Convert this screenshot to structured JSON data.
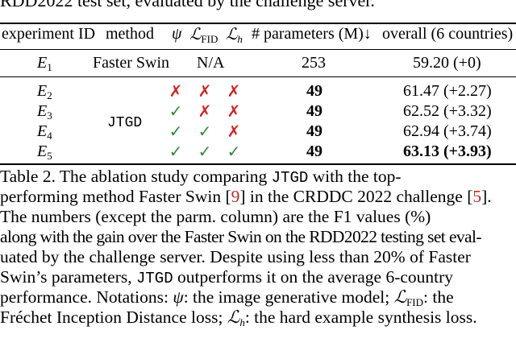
{
  "top_fragment": "RDD2022 test set, evaluated by the challenge server.",
  "table": {
    "headers": {
      "experiment_id": "experiment ID",
      "method": "method",
      "psi": "ψ",
      "lfid_base": "ℒ",
      "lfid_sub": "FID",
      "lh_base": "ℒ",
      "lh_sub": "h",
      "params": "# parameters (M)↓",
      "overall": "overall (6 countries)"
    },
    "baseline": {
      "id_base": "E",
      "id_sub": "1",
      "method": "Faster Swin",
      "na": "N/A",
      "params": "253",
      "overall": "59.20 (+0)"
    },
    "method_name": "JTGD",
    "rows": [
      {
        "id_base": "E",
        "id_sub": "2",
        "psi": "✗",
        "lfid": "✗",
        "lh": "✗",
        "params": "49",
        "overall": "61.47 (+2.27)"
      },
      {
        "id_base": "E",
        "id_sub": "3",
        "psi": "✓",
        "lfid": "✗",
        "lh": "✗",
        "params": "49",
        "overall": "62.52 (+3.32)"
      },
      {
        "id_base": "E",
        "id_sub": "4",
        "psi": "✓",
        "lfid": "✓",
        "lh": "✗",
        "params": "49",
        "overall": "62.94 (+3.74)"
      },
      {
        "id_base": "E",
        "id_sub": "5",
        "psi": "✓",
        "lfid": "✓",
        "lh": "✓",
        "params": "49",
        "overall": "63.13 (+3.93)"
      }
    ]
  },
  "caption": {
    "l1a": "Table 2.   The ablation study comparing ",
    "l1b": "JTGD",
    "l1c": " with the top-",
    "l2a": "performing method Faster Swin [",
    "l2ref": "9",
    "l2b": "] in the CRDDC 2022 challenge [",
    "l2ref2": "5",
    "l2c": "].",
    "l3": "The numbers (except the parm. column) are the F1 values (%)",
    "l4": "along with the gain over the Faster Swin on the RDD2022 testing set eval-",
    "l5": "uated by the challenge server. Despite using less than 20% of Faster",
    "l6a": "Swin’s parameters, ",
    "l6b": "JTGD",
    "l6c": " outperforms it on the average 6-country",
    "l7a": "performance. Notations: ",
    "l7psi": "ψ",
    "l7b": ": the image generative model; ",
    "l7L": "ℒ",
    "l7sub": "FID",
    "l7c": ": the",
    "l8a": "Fréchet Inception Distance loss; ",
    "l8L": "ℒ",
    "l8sub": "h",
    "l8b": ": the hard example synthesis loss."
  }
}
